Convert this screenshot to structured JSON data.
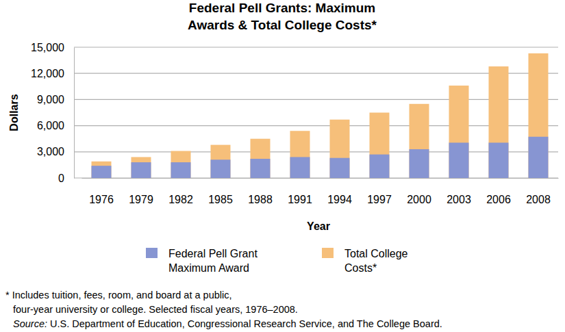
{
  "chart_data": {
    "type": "bar",
    "title": "Federal Pell Grants: Maximum\nAwards & Total College Costs*",
    "x_label": "Year",
    "y_label": "Dollars",
    "categories": [
      "1976",
      "1979",
      "1982",
      "1985",
      "1988",
      "1991",
      "1994",
      "1997",
      "2000",
      "2003",
      "2006",
      "2008"
    ],
    "series": [
      {
        "name": "Federal Pell Grant\nMaximum Award",
        "color": "#8795d2",
        "values": [
          1400,
          1800,
          1800,
          2100,
          2200,
          2400,
          2300,
          2700,
          3300,
          4050,
          4050,
          4731
        ]
      },
      {
        "name": "Total College\nCosts*",
        "color": "#f6bf7a",
        "values": [
          1900,
          2400,
          3100,
          3800,
          4500,
          5400,
          6700,
          7500,
          8500,
          10600,
          12800,
          14300
        ]
      }
    ],
    "stacked": false,
    "ylim": [
      0,
      15000
    ],
    "yticks": [
      0,
      {
        "value": 3000,
        "label": "3,000"
      },
      {
        "value": 6000,
        "label": "6,000"
      },
      {
        "value": 9000,
        "label": "9,000"
      },
      {
        "value": 12000,
        "label": "12,000"
      },
      {
        "value": 15000,
        "label": "15,000"
      }
    ],
    "grid": true,
    "legend": "bottom",
    "footnote": [
      "* Includes tuition, fees, room, and board at a public,",
      "four-year university or college. Selected fiscal years, 1976–2008."
    ],
    "source": "Source: U.S. Department of Education, Congressional Research Service, and The College Board."
  }
}
